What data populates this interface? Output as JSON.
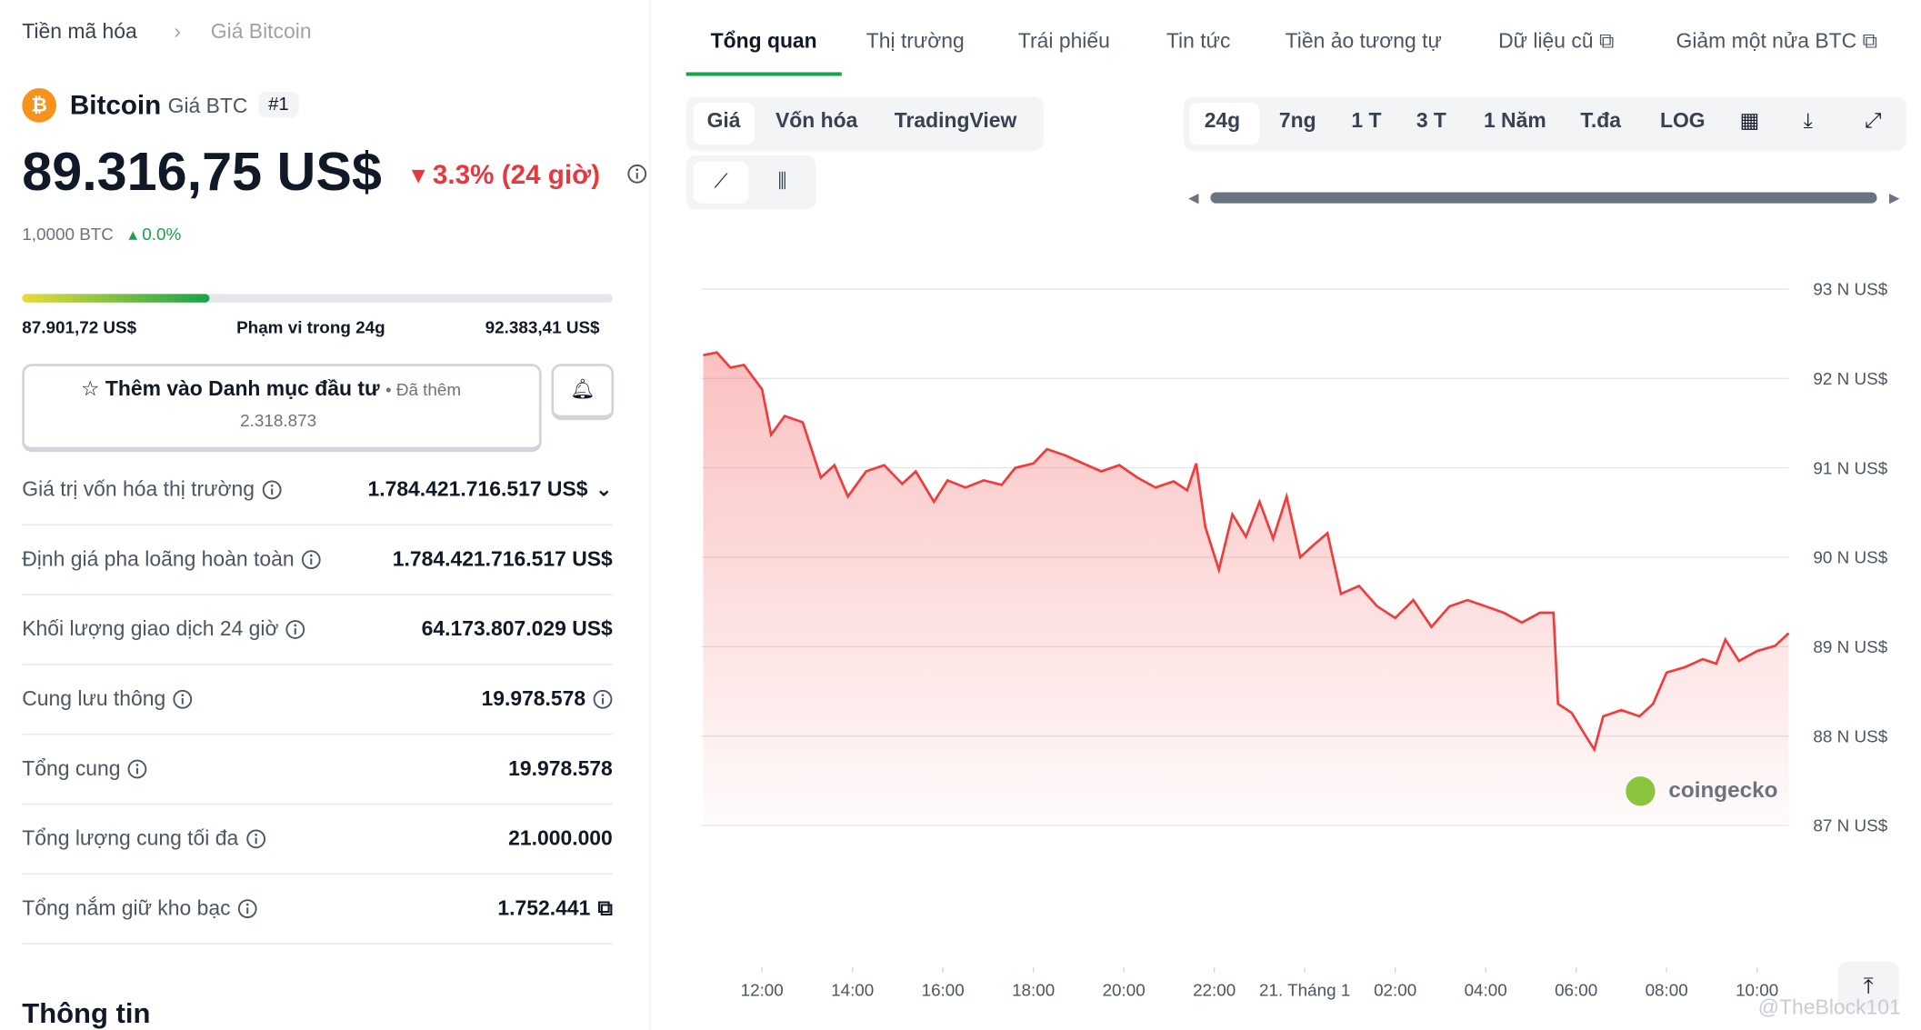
{
  "breadcrumb": [
    "Tiền mã hóa",
    "Giá Bitcoin"
  ],
  "coin": {
    "name": "Bitcoin",
    "symbol": "Giá BTC",
    "rank": "#1",
    "price": "89.316,75 US$",
    "change": "3.3% (24 giờ)",
    "btc": "1,0000 BTC",
    "btc_change": "0.0%"
  },
  "range": {
    "low": "87.901,72 US$",
    "label": "Phạm vi trong 24g",
    "high": "92.383,41 US$"
  },
  "watchlist": {
    "label": "Thêm vào Danh mục đầu tư",
    "added": "• Đã thêm",
    "count": "2.318.873"
  },
  "stats": [
    {
      "label": "Giá trị vốn hóa thị trường",
      "value": "1.784.421.716.517 US$"
    },
    {
      "label": "Định giá pha loãng hoàn toàn",
      "value": "1.784.421.716.517 US$"
    },
    {
      "label": "Khối lượng giao dịch 24 giờ",
      "value": "64.173.807.029 US$"
    },
    {
      "label": "Cung lưu thông",
      "value": "19.978.578"
    },
    {
      "label": "Tổng cung",
      "value": "19.978.578"
    },
    {
      "label": "Tổng lượng cung tối đa",
      "value": "21.000.000"
    },
    {
      "label": "Tổng nắm giữ kho bạc",
      "value": "1.752.441"
    }
  ],
  "section_title": "Thông tin",
  "tabs": [
    "Tổng quan",
    "Thị trường",
    "Trái phiếu",
    "Tin tức",
    "Tiền ảo tương tự",
    "Dữ liệu cũ",
    "Giảm một nửa BTC"
  ],
  "chart_tabs": [
    "Giá",
    "Vốn hóa",
    "TradingView"
  ],
  "ranges": [
    "24g",
    "7ng",
    "1 T",
    "3 T",
    "1 Năm",
    "T.đa",
    "LOG"
  ],
  "watermark": "coingecko",
  "credit": "@TheBlock101",
  "chart_data": {
    "type": "area",
    "color": "#f23b3b",
    "grid": true,
    "x": [
      10.7,
      11.0,
      11.3,
      11.6,
      12.0,
      12.2,
      12.5,
      12.9,
      13.3,
      13.6,
      13.9,
      14.3,
      14.7,
      15.1,
      15.4,
      15.8,
      16.1,
      16.5,
      16.9,
      17.3,
      17.6,
      18.0,
      18.3,
      18.7,
      19.1,
      19.5,
      19.9,
      20.3,
      20.7,
      21.1,
      21.4,
      21.6,
      21.8,
      22.1,
      22.4,
      22.7,
      23.0,
      23.3,
      23.6,
      23.9,
      24.2,
      24.5,
      24.8,
      25.2,
      25.6,
      26.0,
      26.4,
      26.8,
      27.2,
      27.6,
      28.0,
      28.4,
      28.8,
      29.2,
      29.5,
      29.6,
      29.9,
      30.2,
      30.4,
      30.6,
      31.0,
      31.4,
      31.7,
      32.0,
      32.4,
      32.8,
      33.1,
      33.3,
      33.6,
      34.0,
      34.4,
      34.7
    ],
    "values": [
      92.26,
      92.29,
      92.12,
      92.15,
      91.88,
      91.37,
      91.58,
      91.51,
      90.89,
      91.03,
      90.68,
      90.96,
      91.03,
      90.82,
      90.96,
      90.62,
      90.86,
      90.78,
      90.86,
      90.81,
      91.0,
      91.05,
      91.21,
      91.14,
      91.05,
      90.96,
      91.03,
      90.89,
      90.78,
      90.85,
      90.75,
      91.05,
      90.34,
      89.86,
      90.48,
      90.23,
      90.62,
      90.21,
      90.68,
      90.0,
      90.14,
      90.27,
      89.59,
      89.68,
      89.45,
      89.32,
      89.52,
      89.22,
      89.45,
      89.52,
      89.45,
      89.38,
      89.27,
      89.38,
      89.38,
      88.36,
      88.26,
      88.01,
      87.85,
      88.22,
      88.29,
      88.22,
      88.36,
      88.71,
      88.77,
      88.86,
      88.81,
      89.08,
      88.84,
      88.95,
      89.01,
      89.15
    ],
    "xlim": [
      10.7,
      34.7
    ],
    "xticks": [
      {
        "value": 12,
        "label": "12:00"
      },
      {
        "value": 14,
        "label": "14:00"
      },
      {
        "value": 16,
        "label": "16:00"
      },
      {
        "value": 18,
        "label": "18:00"
      },
      {
        "value": 20,
        "label": "20:00"
      },
      {
        "value": 22,
        "label": "22:00"
      },
      {
        "value": 24,
        "label": "21. Tháng 1"
      },
      {
        "value": 26,
        "label": "02:00"
      },
      {
        "value": 28,
        "label": "04:00"
      },
      {
        "value": 30,
        "label": "06:00"
      },
      {
        "value": 32,
        "label": "08:00"
      },
      {
        "value": 34,
        "label": "10:00"
      }
    ],
    "ylim": [
      87,
      93
    ],
    "yticks": [
      {
        "value": 87,
        "label": "87 N US$"
      },
      {
        "value": 88,
        "label": "88 N US$"
      },
      {
        "value": 89,
        "label": "89 N US$"
      },
      {
        "value": 90,
        "label": "90 N US$"
      },
      {
        "value": 91,
        "label": "91 N US$"
      },
      {
        "value": 92,
        "label": "92 N US$"
      },
      {
        "value": 93,
        "label": "93 N US$"
      }
    ]
  }
}
